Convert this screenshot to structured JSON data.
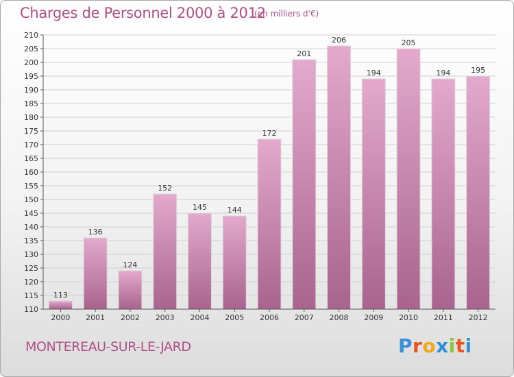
{
  "title": "Charges de Personnel 2000 à 2012",
  "subtitle": "(en milliers d'€)",
  "location": "MONTEREAU-SUR-LE-JARD",
  "logo": {
    "text": "Proxiti",
    "letter_colors": [
      "#3b8fd6",
      "#e8541e",
      "#f0a81c",
      "#2e8fd8",
      "#8cc63f",
      "#e8541e",
      "#3b8fd6"
    ]
  },
  "colors": {
    "title": "#b04f86",
    "bar_top": "#e4a9cd",
    "bar_bottom": "#a8648e",
    "bar_edge": "#d9d9d9",
    "grid": "#cfcfcf"
  },
  "chart_data": {
    "type": "bar",
    "categories": [
      "2000",
      "2001",
      "2002",
      "2003",
      "2004",
      "2005",
      "2006",
      "2007",
      "2008",
      "2009",
      "2010",
      "2011",
      "2012"
    ],
    "values": [
      113,
      136,
      124,
      152,
      145,
      144,
      172,
      201,
      206,
      194,
      205,
      194,
      195
    ],
    "title": "Charges de Personnel 2000 à 2012",
    "subtitle": "(en milliers d'€)",
    "ylim": [
      110,
      210
    ],
    "ytick_step": 5,
    "grid": true,
    "legend": "none"
  }
}
